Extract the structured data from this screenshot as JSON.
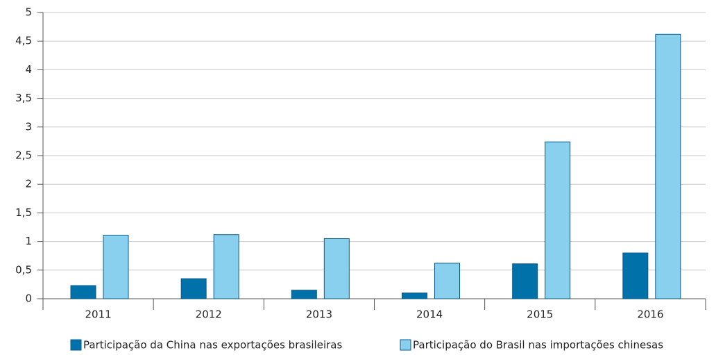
{
  "chart_data": {
    "type": "bar",
    "categories": [
      "2011",
      "2012",
      "2013",
      "2014",
      "2015",
      "2016"
    ],
    "series": [
      {
        "name": "Participação da China nas exportações brasileiras",
        "color": "#0071a9",
        "values": [
          0.23,
          0.35,
          0.15,
          0.1,
          0.61,
          0.8
        ]
      },
      {
        "name": "Participação do Brasil nas importações chinesas",
        "color": "#89d0ee",
        "values": [
          1.11,
          1.12,
          1.05,
          0.62,
          2.74,
          4.62
        ]
      }
    ],
    "ylim": [
      0,
      5
    ],
    "yticks": [
      0,
      {
        "value": 0.5,
        "label": "0,5"
      },
      1,
      {
        "value": 1.5,
        "label": "1,5"
      },
      2,
      {
        "value": 2.5,
        "label": "2,5"
      },
      3,
      {
        "value": 3.5,
        "label": "3,5"
      },
      4,
      {
        "value": 4.5,
        "label": "4,5"
      },
      5
    ],
    "grid": true
  }
}
